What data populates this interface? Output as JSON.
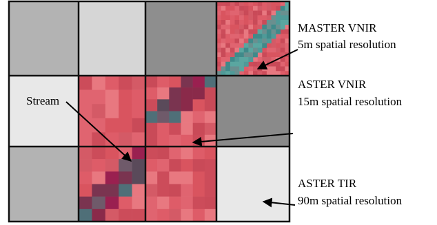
{
  "labels": {
    "master": {
      "title": "MASTER VNIR",
      "resolution": "5m spatial resolution"
    },
    "aster_vnir": {
      "title": "ASTER VNIR",
      "resolution": "15m spatial resolution"
    },
    "aster_tir": {
      "title": "ASTER TIR",
      "resolution": "90m spatial resolution"
    },
    "stream": "Stream"
  }
}
